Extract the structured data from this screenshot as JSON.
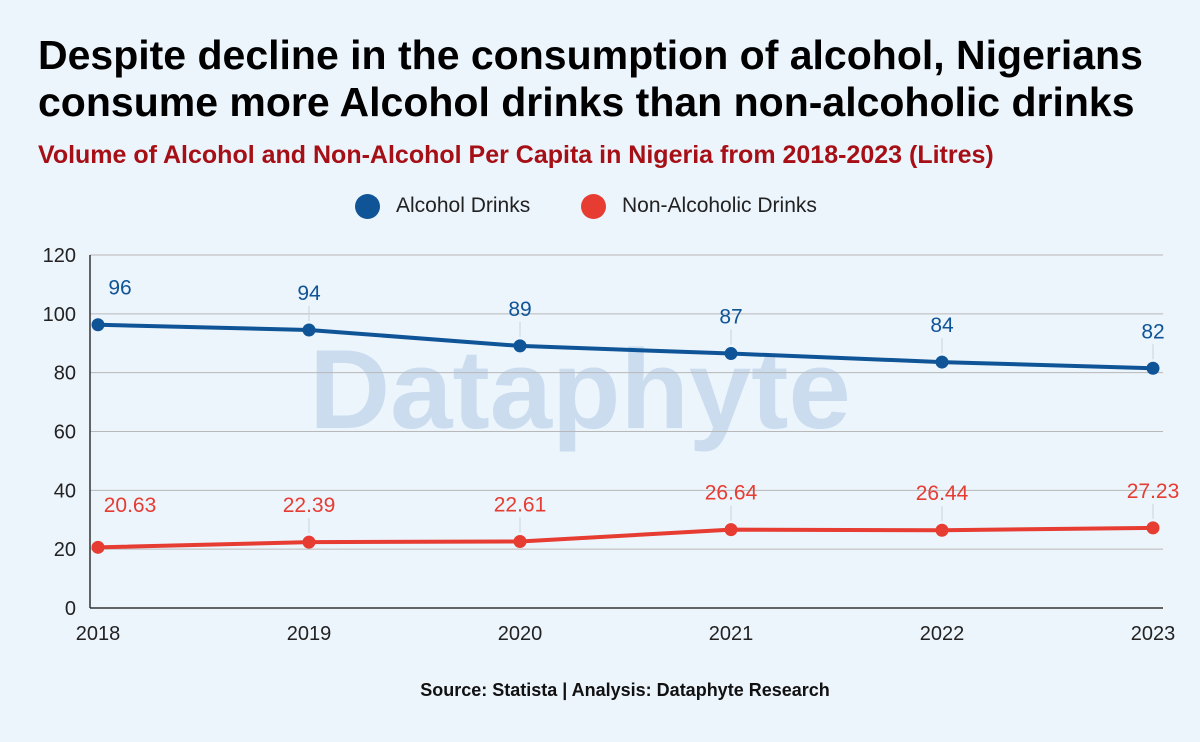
{
  "header": {
    "title": "Despite decline in the consumption of alcohol, Nigerians consume more Alcohol drinks than non-alcoholic drinks"
  },
  "watermark": "Dataphyte",
  "source": "Source: Statista | Analysis: Dataphyte Research",
  "chart_data": {
    "type": "line",
    "title": "Volume of Alcohol and Non-Alcohol Per Capita in Nigeria from 2018-2023 (Litres)",
    "title_color": "#a50f15",
    "x": [
      "2018",
      "2019",
      "2020",
      "2021",
      "2022",
      "2023"
    ],
    "ylim": [
      0,
      120
    ],
    "yticks": [
      0,
      20,
      40,
      60,
      80,
      100,
      120
    ],
    "grid": true,
    "legend_position": "top-center",
    "series": [
      {
        "name": "Alcohol Drinks",
        "color": "#0f5496",
        "values": [
          96.3,
          94.5,
          89.1,
          86.5,
          83.6,
          81.5
        ],
        "labels": [
          "96",
          "94",
          "89",
          "87",
          "84",
          "82"
        ]
      },
      {
        "name": "Non-Alcoholic Drinks",
        "color": "#e63c32",
        "values": [
          20.63,
          22.39,
          22.61,
          26.64,
          26.44,
          27.23
        ],
        "labels": [
          "20.63",
          "22.39",
          "22.61",
          "26.64",
          "26.44",
          "27.23"
        ]
      }
    ]
  }
}
